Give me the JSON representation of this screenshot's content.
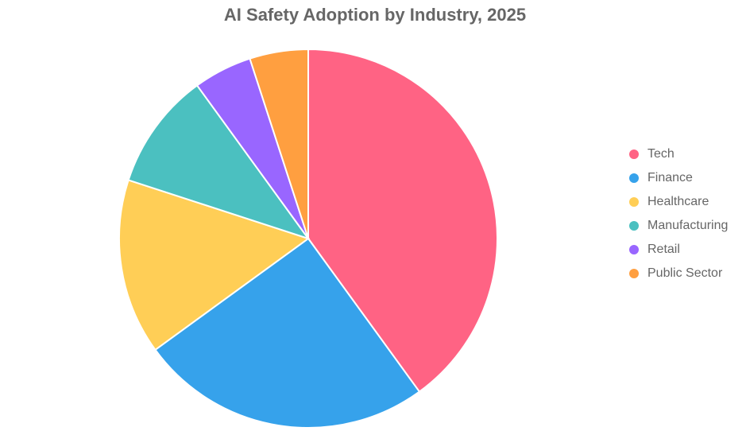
{
  "chart_data": {
    "type": "pie",
    "title": "AI Safety Adoption by Industry, 2025",
    "categories": [
      "Tech",
      "Finance",
      "Healthcare",
      "Manufacturing",
      "Retail",
      "Public Sector"
    ],
    "values": [
      40,
      25,
      15,
      10,
      5,
      5
    ],
    "colors": [
      "#ff6384",
      "#36a2eb",
      "#ffce56",
      "#4bc0c0",
      "#9966ff",
      "#ff9f40"
    ],
    "legend": "right"
  }
}
